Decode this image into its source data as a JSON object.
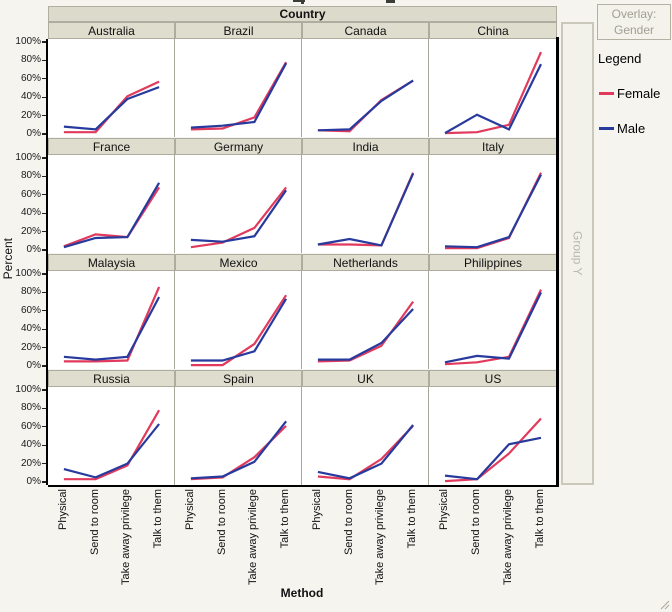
{
  "chart_data": {
    "type": "line",
    "title": "Country",
    "xlabel": "Method",
    "ylabel": "Percent",
    "categories": [
      "Physical",
      "Send to room",
      "Take away privilege",
      "Talk to them"
    ],
    "y_ticks": [
      "0%",
      "20%",
      "40%",
      "60%",
      "80%",
      "100%"
    ],
    "ylim": [
      0,
      100
    ],
    "gridlines": "off",
    "facet_layout": {
      "rows": 4,
      "cols": 4,
      "facet_variable": "Country"
    },
    "x_tick_rotation": "vertical",
    "overlay_box": {
      "line1": "Overlay:",
      "line2": "Gender"
    },
    "group_y_label": "Group Y",
    "legend": {
      "title": "Legend",
      "position": "right",
      "entries": [
        {
          "name": "Female",
          "color": "#e13a5c"
        },
        {
          "name": "Male",
          "color": "#273a9d"
        }
      ]
    },
    "panels": [
      {
        "country": "Australia",
        "female": [
          2,
          2,
          41,
          57
        ],
        "male": [
          8,
          5,
          38,
          51
        ]
      },
      {
        "country": "Brazil",
        "female": [
          5,
          6,
          18,
          78
        ],
        "male": [
          7,
          9,
          13,
          77
        ]
      },
      {
        "country": "Canada",
        "female": [
          4,
          3,
          37,
          58
        ],
        "male": [
          4,
          5,
          36,
          58
        ]
      },
      {
        "country": "China",
        "female": [
          1,
          2,
          10,
          89
        ],
        "male": [
          1,
          21,
          5,
          76
        ]
      },
      {
        "country": "France",
        "female": [
          4,
          17,
          14,
          68
        ],
        "male": [
          3,
          13,
          14,
          73
        ]
      },
      {
        "country": "Germany",
        "female": [
          3,
          8,
          24,
          68
        ],
        "male": [
          11,
          9,
          15,
          65
        ]
      },
      {
        "country": "India",
        "female": [
          6,
          6,
          5,
          84
        ],
        "male": [
          6,
          12,
          5,
          83
        ]
      },
      {
        "country": "Italy",
        "female": [
          2,
          2,
          13,
          84
        ],
        "male": [
          4,
          3,
          14,
          82
        ]
      },
      {
        "country": "Malaysia",
        "female": [
          5,
          5,
          6,
          86
        ],
        "male": [
          10,
          7,
          10,
          75
        ]
      },
      {
        "country": "Mexico",
        "female": [
          1,
          1,
          24,
          77
        ],
        "male": [
          6,
          6,
          16,
          73
        ]
      },
      {
        "country": "Netherlands",
        "female": [
          5,
          6,
          22,
          70
        ],
        "male": [
          7,
          7,
          25,
          62
        ]
      },
      {
        "country": "Philippines",
        "female": [
          2,
          4,
          10,
          83
        ],
        "male": [
          4,
          11,
          8,
          80
        ]
      },
      {
        "country": "Russia",
        "female": [
          3,
          3,
          18,
          78
        ],
        "male": [
          14,
          5,
          20,
          63
        ]
      },
      {
        "country": "Spain",
        "female": [
          3,
          5,
          27,
          61
        ],
        "male": [
          4,
          6,
          22,
          66
        ]
      },
      {
        "country": "UK",
        "female": [
          6,
          3,
          25,
          61
        ],
        "male": [
          11,
          4,
          20,
          62
        ]
      },
      {
        "country": "US",
        "female": [
          1,
          3,
          31,
          69
        ],
        "male": [
          7,
          3,
          41,
          48
        ]
      }
    ]
  }
}
